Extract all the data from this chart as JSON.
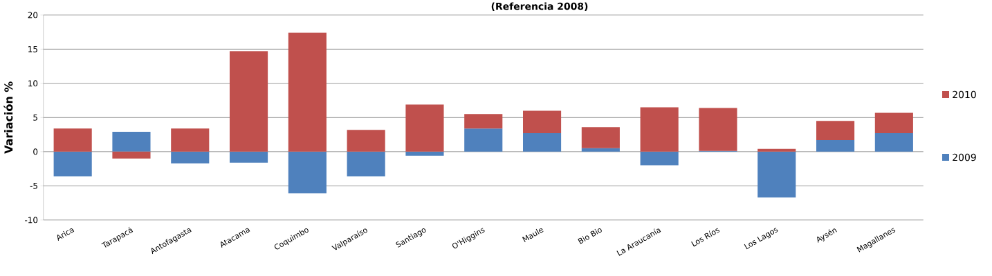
{
  "chart_data": {
    "type": "bar",
    "title": "(Referencia 2008)",
    "ylabel": "Variación %",
    "categories": [
      "Arica",
      "Tarapacá",
      "Antofagasta",
      "Atacama",
      "Coquimbo",
      "Valparaíso",
      "Santiago",
      "O'Higgins",
      "Maule",
      "Bio Bio",
      "La Araucanía",
      "Los Ríos",
      "Los Lagos",
      "Aysén",
      "Magallanes"
    ],
    "series": [
      {
        "name": "2009",
        "color": "#4f81bd",
        "values": [
          -3.6,
          2.9,
          -1.7,
          -1.6,
          -6.1,
          -3.6,
          -0.6,
          3.4,
          2.7,
          0.5,
          -2.0,
          0.1,
          -6.7,
          1.7,
          2.7
        ]
      },
      {
        "name": "2010",
        "color": "#c0504d",
        "values": [
          3.4,
          -1.0,
          3.4,
          14.7,
          17.4,
          3.2,
          6.9,
          2.1,
          3.3,
          3.1,
          6.5,
          6.3,
          0.4,
          2.8,
          3.0
        ]
      }
    ],
    "stacked": true,
    "ylim": [
      -10,
      20
    ],
    "yticks": [
      -10,
      -5,
      0,
      5,
      10,
      15,
      20
    ],
    "grid": "y",
    "legend": "right"
  }
}
